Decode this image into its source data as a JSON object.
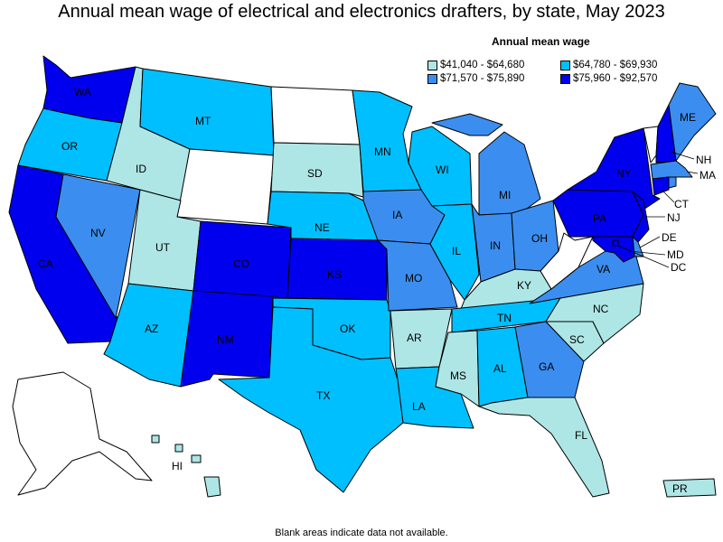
{
  "title": "Annual mean wage of electrical and electronics drafters, by state, May 2023",
  "footnote": "Blank areas indicate data not available.",
  "colors": {
    "blank": "#ffffff",
    "tier1": "#aee6e6",
    "tier2": "#00bfff",
    "tier3": "#3b8eef",
    "tier4": "#0000ee"
  },
  "legend": {
    "title": "Annual mean wage",
    "items": [
      {
        "label": "$41,040 - $64,680",
        "tier": "tier1"
      },
      {
        "label": "$64,780 - $69,930",
        "tier": "tier2"
      },
      {
        "label": "$71,570 - $75,890",
        "tier": "tier3"
      },
      {
        "label": "$75,960 - $92,570",
        "tier": "tier4"
      }
    ]
  },
  "states": {
    "WA": "tier4",
    "OR": "tier2",
    "CA": "tier4",
    "NV": "tier3",
    "ID": "tier1",
    "MT": "tier2",
    "WY": "blank",
    "UT": "tier1",
    "AZ": "tier2",
    "CO": "tier4",
    "NM": "tier4",
    "ND": "blank",
    "SD": "tier1",
    "NE": "tier2",
    "KS": "tier4",
    "OK": "tier2",
    "TX": "tier2",
    "MN": "tier2",
    "IA": "tier3",
    "MO": "tier3",
    "AR": "tier1",
    "LA": "tier2",
    "WI": "tier2",
    "IL": "tier2",
    "MI": "tier3",
    "IN": "tier3",
    "OH": "tier3",
    "KY": "tier1",
    "TN": "tier2",
    "MS": "tier1",
    "AL": "tier2",
    "GA": "tier3",
    "FL": "tier1",
    "SC": "tier1",
    "NC": "tier1",
    "VA": "tier3",
    "WV": "blank",
    "PA": "tier4",
    "NY": "tier4",
    "VT": "blank",
    "NH": "tier4",
    "ME": "tier3",
    "MA": "tier3",
    "RI": "tier3",
    "CT": "tier4",
    "NJ": "tier4",
    "DE": "tier3",
    "MD": "tier4",
    "DC": "tier4",
    "AK": "blank",
    "HI": "tier1",
    "PR": "tier1"
  },
  "labels": {
    "WA": "WA",
    "OR": "OR",
    "CA": "CA",
    "NV": "NV",
    "ID": "ID",
    "MT": "MT",
    "UT": "UT",
    "AZ": "AZ",
    "CO": "CO",
    "NM": "NM",
    "SD": "SD",
    "NE": "NE",
    "KS": "KS",
    "OK": "OK",
    "TX": "TX",
    "MN": "MN",
    "IA": "IA",
    "MO": "MO",
    "AR": "AR",
    "LA": "LA",
    "WI": "WI",
    "IL": "IL",
    "MI": "MI",
    "IN": "IN",
    "OH": "OH",
    "KY": "KY",
    "TN": "TN",
    "MS": "MS",
    "AL": "AL",
    "GA": "GA",
    "FL": "FL",
    "SC": "SC",
    "NC": "NC",
    "VA": "VA",
    "PA": "PA",
    "NY": "NY",
    "NH": "NH",
    "ME": "ME",
    "MA": "MA",
    "CT": "CT",
    "NJ": "NJ",
    "DE": "DE",
    "MD": "MD",
    "DC": "DC",
    "HI": "HI",
    "PR": "PR"
  }
}
